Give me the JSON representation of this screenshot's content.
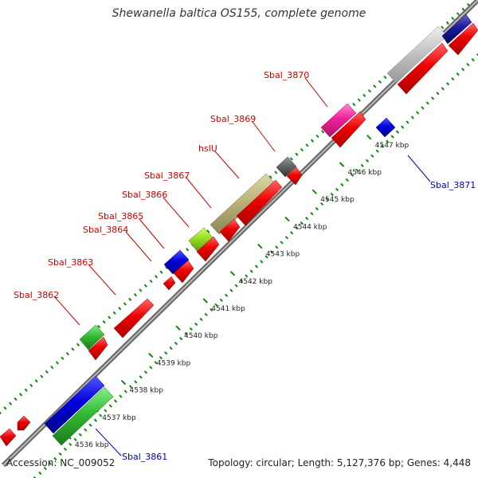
{
  "title": "Shewanella baltica OS155, complete genome",
  "accession": "Accession: NC_009052",
  "topology": "Topology: circular; Length: 5,127,376 bp; Genes: 4,448",
  "colors": {
    "forward_label": "#cc0000",
    "reverse_label": "#0000bb",
    "tick": "#118811",
    "backbone": "#999999",
    "red": "#ee0000",
    "blue": "#0000dd",
    "green": "#33bb33",
    "pink": "#ee2299",
    "khaki": "#bbb37a",
    "lime": "#99dd22",
    "gray": "#666666",
    "silver": "#bbbbbb",
    "navy": "#1a1a99"
  },
  "kbp_labels": [
    "4536 kbp",
    "4537 kbp",
    "4538 kbp",
    "4539 kbp",
    "4540 kbp",
    "4541 kbp",
    "4542 kbp",
    "4543 kbp",
    "4544 kbp",
    "4545 kbp",
    "4546 kbp",
    "4547 kbp"
  ],
  "gene_labels": [
    {
      "id": "sbal-3861",
      "text": "Sbal_3861",
      "strand": "reverse"
    },
    {
      "id": "sbal-3862",
      "text": "Sbal_3862",
      "strand": "forward"
    },
    {
      "id": "sbal-3863",
      "text": "Sbal_3863",
      "strand": "forward"
    },
    {
      "id": "sbal-3864",
      "text": "Sbal_3864",
      "strand": "forward"
    },
    {
      "id": "sbal-3865",
      "text": "Sbal_3865",
      "strand": "forward"
    },
    {
      "id": "sbal-3866",
      "text": "Sbal_3866",
      "strand": "forward"
    },
    {
      "id": "sbal-3867",
      "text": "Sbal_3867",
      "strand": "forward"
    },
    {
      "id": "hslu",
      "text": "hslU",
      "strand": "forward"
    },
    {
      "id": "sbal-3869",
      "text": "Sbal_3869",
      "strand": "forward"
    },
    {
      "id": "sbal-3870",
      "text": "Sbal_3870",
      "strand": "forward"
    },
    {
      "id": "sbal-3871",
      "text": "Sbal_3871",
      "strand": "reverse"
    }
  ]
}
